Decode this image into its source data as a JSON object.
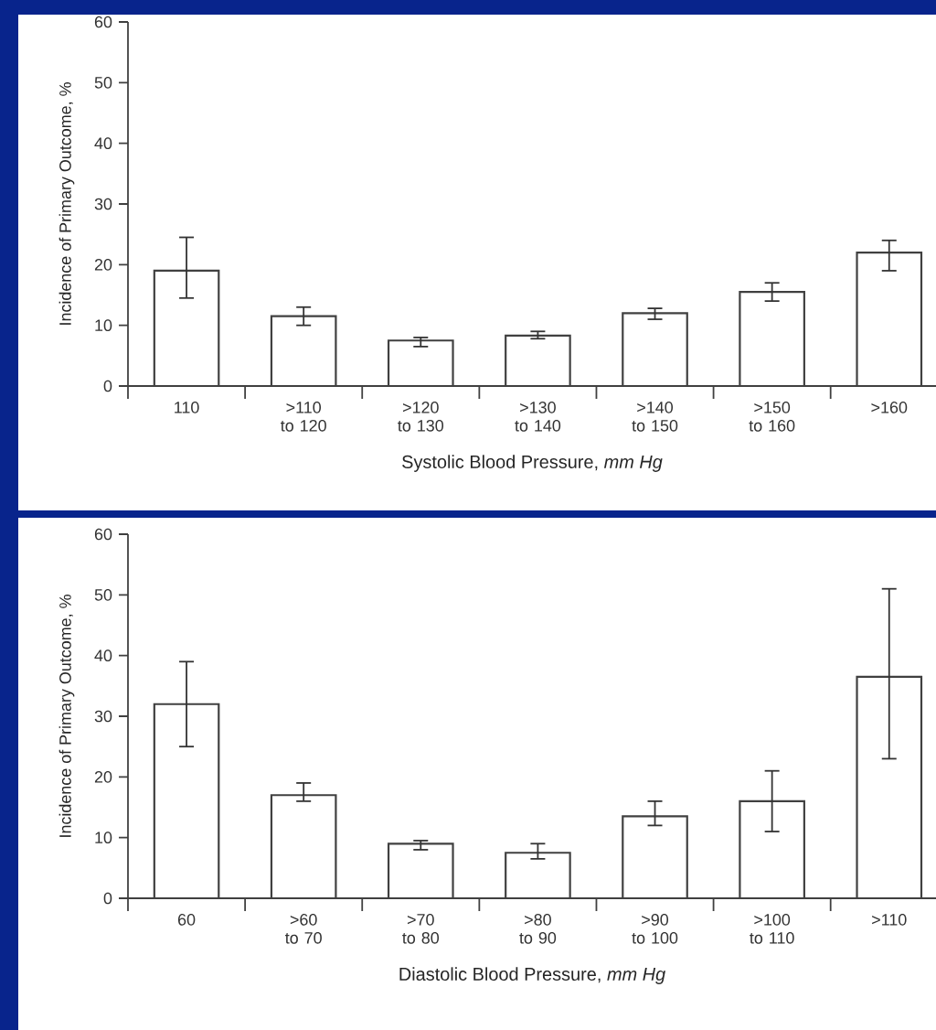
{
  "chart_data": [
    {
      "type": "bar",
      "xlabel": "Systolic Blood Pressure, *mm Hg*",
      "ylabel": "Incidence of Primary Outcome, %",
      "categories": [
        "110",
        ">110 to 120",
        ">120 to 130",
        ">130 to 140",
        ">140 to 150",
        ">150 to 160",
        ">160"
      ],
      "values": [
        19,
        11.5,
        7.5,
        8.3,
        12,
        15.5,
        22
      ],
      "errors": [
        [
          14.5,
          24.5
        ],
        [
          10,
          13
        ],
        [
          6.5,
          8
        ],
        [
          7.8,
          9
        ],
        [
          11,
          12.8
        ],
        [
          14,
          17
        ],
        [
          19,
          24
        ]
      ],
      "color": "#ffffff",
      "ylim": [
        0,
        60
      ],
      "yticks": [
        0,
        10,
        20,
        30,
        40,
        50,
        60
      ],
      "grid": false
    },
    {
      "type": "bar",
      "xlabel": "Diastolic Blood Pressure, *mm Hg*",
      "ylabel": "Incidence of Primary Outcome, %",
      "categories": [
        "60",
        ">60 to 70",
        ">70 to 80",
        ">80 to 90",
        ">90 to 100",
        ">100 to 110",
        ">110"
      ],
      "values": [
        32,
        17,
        9,
        7.5,
        13.5,
        16,
        36.5
      ],
      "errors": [
        [
          25,
          39
        ],
        [
          16,
          19
        ],
        [
          8,
          9.5
        ],
        [
          6.5,
          9
        ],
        [
          12,
          16
        ],
        [
          11,
          21
        ],
        [
          23,
          51
        ]
      ],
      "color": "#ffffff",
      "ylim": [
        0,
        60
      ],
      "yticks": [
        0,
        10,
        20,
        30,
        40,
        50,
        60
      ],
      "grid": false
    }
  ]
}
